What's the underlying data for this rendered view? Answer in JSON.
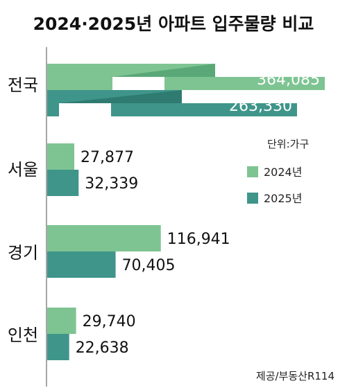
{
  "chart_data": {
    "type": "bar",
    "orientation": "horizontal",
    "title": "2024·2025년 아파트 입주물량 비교",
    "unit_label": "단위:가구",
    "source": "제공/부동산R114",
    "categories": [
      "전국",
      "서울",
      "경기",
      "인천"
    ],
    "series": [
      {
        "name": "2024년",
        "color": "#7ec492",
        "values": [
          364085,
          27877,
          116941,
          29740
        ]
      },
      {
        "name": "2025년",
        "color": "#3f958a",
        "values": [
          263330,
          32339,
          70405,
          22638
        ]
      }
    ],
    "value_labels": [
      [
        "364,085",
        "27,877",
        "116,941",
        "29,740"
      ],
      [
        "263,330",
        "32,339",
        "70,405",
        "22,638"
      ]
    ],
    "axis_break_on_first_category": true,
    "legend_position": "right",
    "grid": false
  }
}
